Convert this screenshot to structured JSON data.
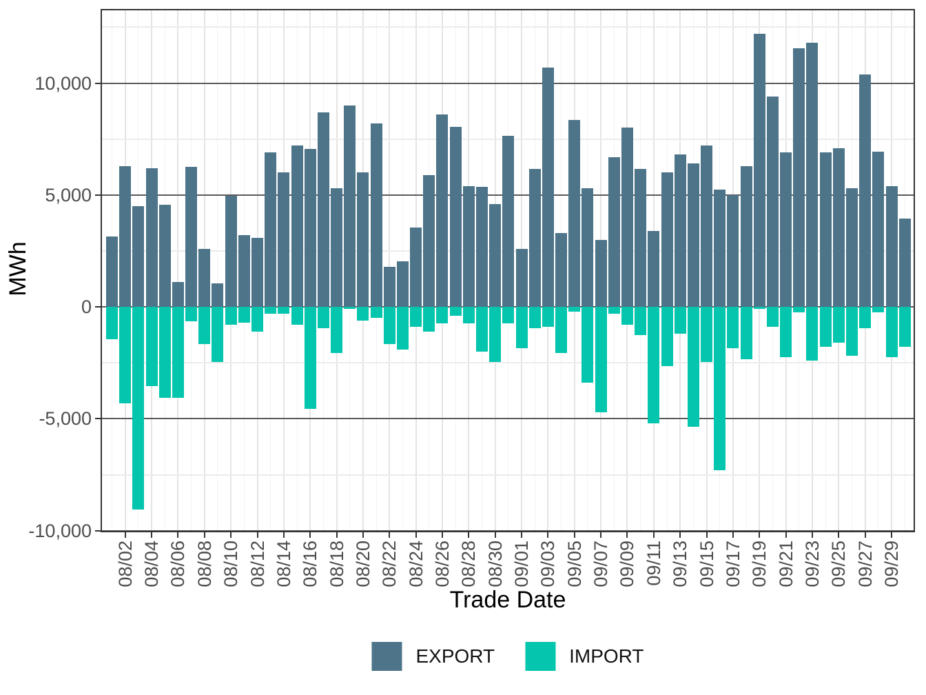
{
  "chart_data": {
    "type": "bar",
    "title": "",
    "xlabel": "Trade Date",
    "ylabel": "MWh",
    "ylim": [
      -10070,
      13310
    ],
    "grid": true,
    "legend_position": "bottom",
    "yticks": [
      -10000,
      -5000,
      0,
      5000,
      10000
    ],
    "ytick_labels": [
      "-10,000",
      "-5,000",
      "0",
      "5,000",
      "10,000"
    ],
    "yticks_minor": [
      -7500,
      -2500,
      2500,
      7500,
      12500
    ],
    "xtick_labels": [
      "08/02",
      "08/04",
      "08/06",
      "08/08",
      "08/10",
      "08/12",
      "08/14",
      "08/16",
      "08/18",
      "08/20",
      "08/22",
      "08/24",
      "08/26",
      "08/28",
      "08/30",
      "09/01",
      "09/03",
      "09/05",
      "09/07",
      "09/09",
      "09/11",
      "09/13",
      "09/15",
      "09/17",
      "09/19",
      "09/21",
      "09/23",
      "09/25",
      "09/27",
      "09/29"
    ],
    "categories": [
      "08/01",
      "08/02",
      "08/03",
      "08/04",
      "08/05",
      "08/06",
      "08/07",
      "08/08",
      "08/09",
      "08/10",
      "08/11",
      "08/12",
      "08/13",
      "08/14",
      "08/15",
      "08/16",
      "08/17",
      "08/18",
      "08/19",
      "08/20",
      "08/21",
      "08/22",
      "08/23",
      "08/24",
      "08/25",
      "08/26",
      "08/27",
      "08/28",
      "08/29",
      "08/30",
      "08/31",
      "09/01",
      "09/02",
      "09/03",
      "09/04",
      "09/05",
      "09/06",
      "09/07",
      "09/08",
      "09/09",
      "09/10",
      "09/11",
      "09/12",
      "09/13",
      "09/14",
      "09/15",
      "09/16",
      "09/17",
      "09/18",
      "09/19",
      "09/20",
      "09/21",
      "09/22",
      "09/23",
      "09/24",
      "09/25",
      "09/26",
      "09/27",
      "09/28",
      "09/29",
      "09/30"
    ],
    "series": [
      {
        "name": "EXPORT",
        "color": "#4d7489",
        "values": [
          3150,
          6300,
          4500,
          6200,
          4550,
          1100,
          6250,
          2600,
          1050,
          4950,
          3200,
          3100,
          6900,
          6000,
          7200,
          7050,
          8700,
          5300,
          9000,
          6000,
          8200,
          1800,
          2050,
          3550,
          5900,
          8600,
          8050,
          5400,
          5350,
          4600,
          7650,
          2600,
          6150,
          10700,
          3300,
          8350,
          5300,
          3000,
          6700,
          8000,
          6150,
          3400,
          6000,
          6800,
          6400,
          7200,
          5250,
          5000,
          6300,
          12200,
          9400,
          6900,
          11550,
          11800,
          6900,
          7100,
          5300,
          10400,
          6950,
          5400,
          3950
        ]
      },
      {
        "name": "IMPORT",
        "color": "#04c5ad",
        "values": [
          -1450,
          -4300,
          -9050,
          -3550,
          -4050,
          -4050,
          -650,
          -1650,
          -2450,
          -800,
          -700,
          -1100,
          -300,
          -300,
          -800,
          -4550,
          -950,
          -2050,
          -100,
          -600,
          -500,
          -1650,
          -1900,
          -900,
          -1100,
          -750,
          -400,
          -750,
          -2000,
          -2450,
          -750,
          -1850,
          -950,
          -900,
          -2050,
          -200,
          -3400,
          -4700,
          -300,
          -800,
          -1250,
          -5200,
          -2650,
          -1200,
          -5350,
          -2450,
          -7300,
          -1850,
          -2350,
          -100,
          -900,
          -2250,
          -250,
          -2400,
          -1800,
          -1600,
          -2200,
          -950,
          -250,
          -2250,
          -1800
        ]
      }
    ]
  },
  "axes": {
    "x_title": "Trade Date",
    "y_title": "MWh"
  },
  "legend": {
    "items": [
      {
        "label": "EXPORT",
        "color": "#4d7489"
      },
      {
        "label": "IMPORT",
        "color": "#04c5ad"
      }
    ]
  }
}
